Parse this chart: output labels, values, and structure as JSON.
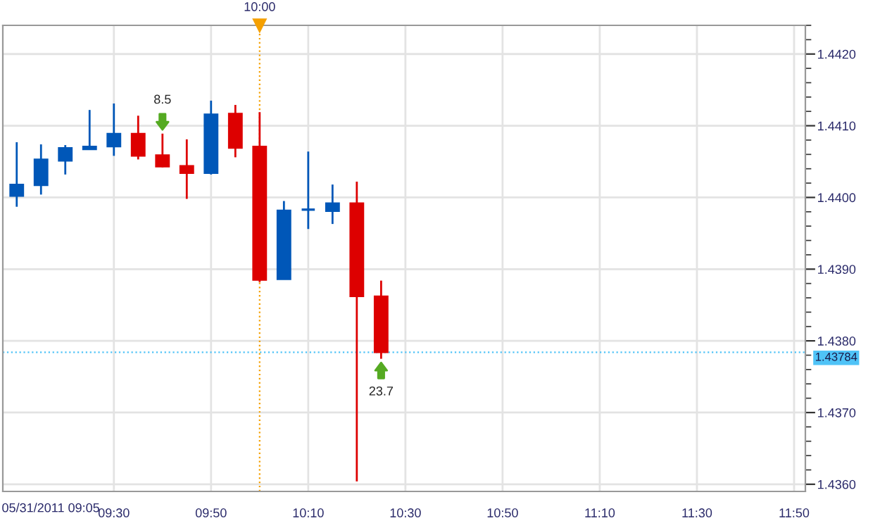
{
  "chart_data": {
    "type": "candlestick",
    "x": [
      9.1667,
      9.25,
      9.3333,
      9.4167,
      9.5,
      9.5833,
      9.6667,
      9.75,
      9.8333,
      9.9167,
      10,
      10.0833,
      10.1667,
      10.25,
      10.3333,
      10.4167
    ],
    "ohlc": [
      [
        1.44002,
        1.44077,
        1.43987,
        1.44018
      ],
      [
        1.44017,
        1.44074,
        1.44004,
        1.44053
      ],
      [
        1.44051,
        1.44073,
        1.44032,
        1.44069
      ],
      [
        1.44067,
        1.44122,
        1.44067,
        1.44071
      ],
      [
        1.44071,
        1.44131,
        1.44058,
        1.44089
      ],
      [
        1.44089,
        1.44114,
        1.44053,
        1.44058
      ],
      [
        1.44059,
        1.44089,
        1.44042,
        1.44043
      ],
      [
        1.44044,
        1.44081,
        1.43998,
        1.44034
      ],
      [
        1.44034,
        1.44135,
        1.44032,
        1.44116
      ],
      [
        1.44117,
        1.44129,
        1.44056,
        1.44069
      ],
      [
        1.44071,
        1.44119,
        1.43882,
        1.43885
      ],
      [
        1.43886,
        1.43995,
        1.43886,
        1.43982
      ],
      [
        1.43983,
        1.44064,
        1.43956,
        1.43983
      ],
      [
        1.43981,
        1.44018,
        1.43963,
        1.43992
      ],
      [
        1.43992,
        1.44022,
        1.43604,
        1.43862
      ],
      [
        1.43862,
        1.43884,
        1.43775,
        1.43784
      ]
    ],
    "colors": [
      "#0057b8",
      "#0057b8",
      "#0057b8",
      "#0057b8",
      "#0057b8",
      "#dd0000",
      "#dd0000",
      "#dd0000",
      "#0057b8",
      "#dd0000",
      "#dd0000",
      "#0057b8",
      "#0057b8",
      "#0057b8",
      "#dd0000",
      "#dd0000"
    ],
    "xlim": [
      9.119,
      11.872
    ],
    "xticks": [
      {
        "value": 9.5,
        "label": "09:30"
      },
      {
        "value": 9.8333,
        "label": "09:50"
      },
      {
        "value": 10.1667,
        "label": "10:10"
      },
      {
        "value": 10.5,
        "label": "10:30"
      },
      {
        "value": 10.8333,
        "label": "10:50"
      },
      {
        "value": 11.1667,
        "label": "11:10"
      },
      {
        "value": 11.5,
        "label": "11:30"
      },
      {
        "value": 11.8333,
        "label": "11:50"
      }
    ],
    "ylim": [
      1.4359,
      1.4424
    ],
    "yticks": [
      {
        "value": 1.436,
        "label": "1.4360"
      },
      {
        "value": 1.437,
        "label": "1.4370"
      },
      {
        "value": 1.438,
        "label": "1.4380"
      },
      {
        "value": 1.439,
        "label": "1.4390"
      },
      {
        "value": 1.44,
        "label": "1.4400"
      },
      {
        "value": 1.441,
        "label": "1.4410"
      },
      {
        "value": 1.442,
        "label": "1.4420"
      }
    ],
    "grid": true,
    "ref_lines": [
      {
        "axis": "y",
        "value": 1.43784,
        "label": "1.43784",
        "color": "#4fc3f7"
      },
      {
        "axis": "x",
        "value": 10,
        "label": "10:00",
        "color": "#f5a000"
      }
    ],
    "annotations": [
      {
        "text": "8.5",
        "x": 9.6667,
        "y": 1.44089
      },
      {
        "text": "23.7",
        "x": 10.4167,
        "y": 1.43775
      },
      "05/31/2011 09:05"
    ]
  }
}
